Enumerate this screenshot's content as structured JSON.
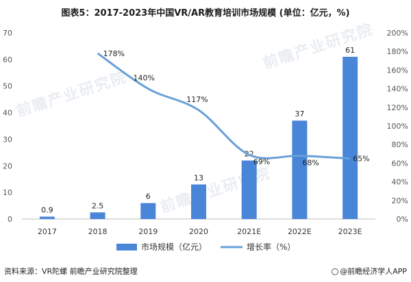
{
  "title": "图表5：2017-2023年中国VR/AR教育培训市场规模 (单位：亿元，%)",
  "source": "资料来源：VR陀螺 前瞻产业研究院整理",
  "brand": "@前瞻经济学人APP",
  "watermark": "前瞻产业研究院",
  "chart_data": {
    "type": "bar+line",
    "categories": [
      "2017",
      "2018",
      "2019",
      "2020",
      "2021E",
      "2022E",
      "2023E"
    ],
    "series": [
      {
        "name": "市场规模（亿元）",
        "type": "bar",
        "axis": "left",
        "values": [
          0.9,
          2.5,
          6,
          13,
          22,
          37,
          61
        ],
        "labels": [
          "0.9",
          "2.5",
          "6",
          "13",
          "22",
          "37",
          "61"
        ],
        "color": "#4a86d8"
      },
      {
        "name": "增长率（%）",
        "type": "line",
        "axis": "right",
        "values": [
          null,
          178,
          140,
          117,
          69,
          68,
          65
        ],
        "labels": [
          "",
          "178%",
          "140%",
          "117%",
          "69%",
          "68%",
          "65%"
        ],
        "color": "#6a9fd8"
      }
    ],
    "y_left": {
      "min": 0,
      "max": 70,
      "ticks": [
        "0",
        "10",
        "20",
        "30",
        "40",
        "50",
        "60",
        "70"
      ]
    },
    "y_right": {
      "min": 0,
      "max": 200,
      "ticks": [
        "0%",
        "20%",
        "40%",
        "60%",
        "80%",
        "100%",
        "120%",
        "140%",
        "160%",
        "180%",
        "200%"
      ]
    },
    "legend_position": "bottom",
    "grid": false
  }
}
